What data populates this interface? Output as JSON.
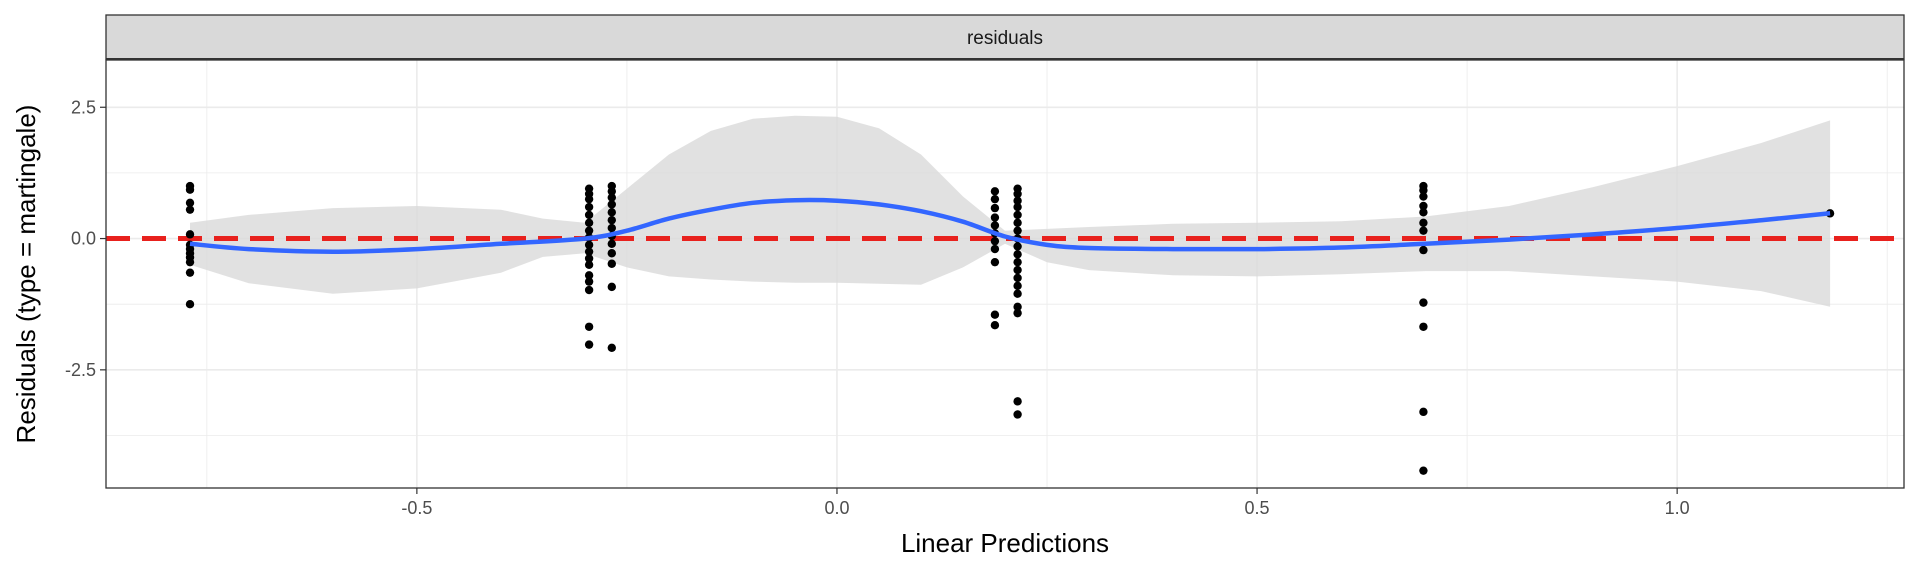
{
  "chart_data": {
    "type": "scatter",
    "title": "",
    "facet_label": "residuals",
    "xlabel": "Linear Predictions",
    "ylabel": "Residuals (type = martingale)",
    "xlim": [
      -0.87,
      1.27
    ],
    "ylim": [
      -4.75,
      3.4
    ],
    "x_ticks": [
      -0.5,
      0.0,
      0.5,
      1.0
    ],
    "x_tick_labels": [
      "-0.5",
      "0.0",
      "0.5",
      "1.0"
    ],
    "y_ticks": [
      2.5,
      0.0,
      -2.5
    ],
    "y_tick_labels": [
      "2.5",
      "0.0",
      "-2.5"
    ],
    "grid": true,
    "reference_line": {
      "y": 0,
      "style": "dashed",
      "color": "#e8211d"
    },
    "series": [
      {
        "kind": "points",
        "color": "#000000",
        "points": [
          [
            -0.77,
            1.0
          ],
          [
            -0.77,
            0.93
          ],
          [
            -0.77,
            0.68
          ],
          [
            -0.77,
            0.55
          ],
          [
            -0.77,
            0.08
          ],
          [
            -0.77,
            -0.12
          ],
          [
            -0.77,
            -0.2
          ],
          [
            -0.77,
            -0.28
          ],
          [
            -0.77,
            -0.36
          ],
          [
            -0.77,
            -0.45
          ],
          [
            -0.77,
            -0.65
          ],
          [
            -0.77,
            -1.25
          ],
          [
            -0.295,
            0.95
          ],
          [
            -0.295,
            0.85
          ],
          [
            -0.295,
            0.75
          ],
          [
            -0.295,
            0.6
          ],
          [
            -0.295,
            0.45
          ],
          [
            -0.295,
            0.3
          ],
          [
            -0.295,
            0.15
          ],
          [
            -0.295,
            0.02
          ],
          [
            -0.295,
            -0.12
          ],
          [
            -0.295,
            -0.25
          ],
          [
            -0.295,
            -0.38
          ],
          [
            -0.295,
            -0.5
          ],
          [
            -0.295,
            -0.7
          ],
          [
            -0.295,
            -0.82
          ],
          [
            -0.295,
            -0.98
          ],
          [
            -0.295,
            -1.68
          ],
          [
            -0.295,
            -2.02
          ],
          [
            -0.268,
            1.0
          ],
          [
            -0.268,
            0.9
          ],
          [
            -0.268,
            0.78
          ],
          [
            -0.268,
            0.65
          ],
          [
            -0.268,
            0.5
          ],
          [
            -0.268,
            0.35
          ],
          [
            -0.268,
            0.2
          ],
          [
            -0.268,
            0.05
          ],
          [
            -0.268,
            -0.1
          ],
          [
            -0.268,
            -0.28
          ],
          [
            -0.268,
            -0.48
          ],
          [
            -0.268,
            -0.92
          ],
          [
            -0.268,
            -2.08
          ],
          [
            0.188,
            0.9
          ],
          [
            0.188,
            0.75
          ],
          [
            0.188,
            0.58
          ],
          [
            0.188,
            0.4
          ],
          [
            0.188,
            0.25
          ],
          [
            0.188,
            0.1
          ],
          [
            0.188,
            -0.05
          ],
          [
            0.188,
            -0.2
          ],
          [
            0.188,
            -0.45
          ],
          [
            0.188,
            -1.45
          ],
          [
            0.188,
            -1.65
          ],
          [
            0.215,
            0.95
          ],
          [
            0.215,
            0.85
          ],
          [
            0.215,
            0.72
          ],
          [
            0.215,
            0.6
          ],
          [
            0.215,
            0.45
          ],
          [
            0.215,
            0.3
          ],
          [
            0.215,
            0.15
          ],
          [
            0.215,
            0.0
          ],
          [
            0.215,
            -0.15
          ],
          [
            0.215,
            -0.3
          ],
          [
            0.215,
            -0.45
          ],
          [
            0.215,
            -0.6
          ],
          [
            0.215,
            -0.75
          ],
          [
            0.215,
            -0.9
          ],
          [
            0.215,
            -1.05
          ],
          [
            0.215,
            -1.3
          ],
          [
            0.215,
            -1.42
          ],
          [
            0.215,
            -3.1
          ],
          [
            0.215,
            -3.35
          ],
          [
            0.698,
            1.0
          ],
          [
            0.698,
            0.92
          ],
          [
            0.698,
            0.8
          ],
          [
            0.698,
            0.62
          ],
          [
            0.698,
            0.5
          ],
          [
            0.698,
            0.3
          ],
          [
            0.698,
            0.15
          ],
          [
            0.698,
            -0.22
          ],
          [
            0.698,
            -1.22
          ],
          [
            0.698,
            -1.68
          ],
          [
            0.698,
            -3.3
          ],
          [
            0.698,
            -4.42
          ],
          [
            1.182,
            0.48
          ]
        ]
      },
      {
        "kind": "smooth",
        "color": "#3366ff",
        "points": [
          [
            -0.77,
            -0.1
          ],
          [
            -0.7,
            -0.2
          ],
          [
            -0.6,
            -0.25
          ],
          [
            -0.5,
            -0.2
          ],
          [
            -0.4,
            -0.1
          ],
          [
            -0.3,
            0.0
          ],
          [
            -0.25,
            0.15
          ],
          [
            -0.2,
            0.38
          ],
          [
            -0.15,
            0.55
          ],
          [
            -0.1,
            0.68
          ],
          [
            -0.05,
            0.73
          ],
          [
            0.0,
            0.72
          ],
          [
            0.05,
            0.65
          ],
          [
            0.1,
            0.52
          ],
          [
            0.15,
            0.32
          ],
          [
            0.2,
            0.04
          ],
          [
            0.25,
            -0.12
          ],
          [
            0.3,
            -0.18
          ],
          [
            0.4,
            -0.2
          ],
          [
            0.5,
            -0.2
          ],
          [
            0.6,
            -0.17
          ],
          [
            0.7,
            -0.1
          ],
          [
            0.8,
            -0.02
          ],
          [
            0.9,
            0.08
          ],
          [
            1.0,
            0.2
          ],
          [
            1.1,
            0.35
          ],
          [
            1.182,
            0.48
          ]
        ],
        "ci_upper": [
          [
            -0.77,
            0.3
          ],
          [
            -0.7,
            0.45
          ],
          [
            -0.6,
            0.58
          ],
          [
            -0.5,
            0.62
          ],
          [
            -0.4,
            0.55
          ],
          [
            -0.35,
            0.38
          ],
          [
            -0.3,
            0.3
          ],
          [
            -0.25,
            0.95
          ],
          [
            -0.2,
            1.6
          ],
          [
            -0.15,
            2.05
          ],
          [
            -0.1,
            2.28
          ],
          [
            -0.05,
            2.34
          ],
          [
            0.0,
            2.32
          ],
          [
            0.05,
            2.1
          ],
          [
            0.1,
            1.6
          ],
          [
            0.15,
            0.8
          ],
          [
            0.2,
            0.15
          ],
          [
            0.3,
            0.22
          ],
          [
            0.4,
            0.28
          ],
          [
            0.5,
            0.3
          ],
          [
            0.6,
            0.33
          ],
          [
            0.7,
            0.42
          ],
          [
            0.8,
            0.62
          ],
          [
            0.9,
            0.98
          ],
          [
            1.0,
            1.38
          ],
          [
            1.1,
            1.82
          ],
          [
            1.182,
            2.25
          ]
        ],
        "ci_lower": [
          [
            -0.77,
            -0.5
          ],
          [
            -0.7,
            -0.85
          ],
          [
            -0.6,
            -1.05
          ],
          [
            -0.5,
            -0.95
          ],
          [
            -0.4,
            -0.65
          ],
          [
            -0.35,
            -0.35
          ],
          [
            -0.3,
            -0.28
          ],
          [
            -0.25,
            -0.55
          ],
          [
            -0.2,
            -0.72
          ],
          [
            -0.15,
            -0.78
          ],
          [
            -0.1,
            -0.82
          ],
          [
            -0.05,
            -0.84
          ],
          [
            0.0,
            -0.84
          ],
          [
            0.05,
            -0.86
          ],
          [
            0.1,
            -0.88
          ],
          [
            0.15,
            -0.55
          ],
          [
            0.2,
            -0.1
          ],
          [
            0.25,
            -0.45
          ],
          [
            0.3,
            -0.6
          ],
          [
            0.4,
            -0.7
          ],
          [
            0.5,
            -0.72
          ],
          [
            0.6,
            -0.68
          ],
          [
            0.7,
            -0.62
          ],
          [
            0.8,
            -0.62
          ],
          [
            0.9,
            -0.72
          ],
          [
            1.0,
            -0.82
          ],
          [
            1.1,
            -1.0
          ],
          [
            1.182,
            -1.3
          ]
        ]
      }
    ]
  }
}
